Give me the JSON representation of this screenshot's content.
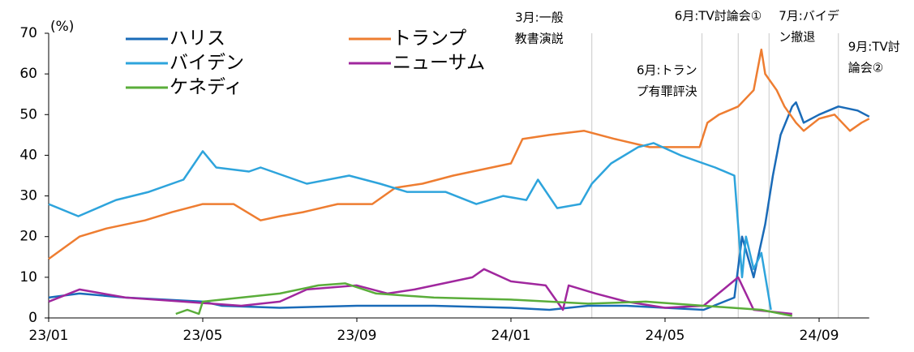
{
  "chart_data": {
    "type": "line",
    "y_unit": "(%)",
    "xlim": [
      0,
      21.3
    ],
    "xticks": [
      {
        "value": 0,
        "label": "23/01"
      },
      {
        "value": 4,
        "label": "23/05"
      },
      {
        "value": 8,
        "label": "23/09"
      },
      {
        "value": 12,
        "label": "24/01"
      },
      {
        "value": 16,
        "label": "24/05"
      },
      {
        "value": 20,
        "label": "24/09"
      }
    ],
    "ylim": [
      0,
      70
    ],
    "yticks": [
      0,
      10,
      20,
      30,
      40,
      50,
      60,
      70
    ],
    "legend": "top-left",
    "series": [
      {
        "name": "ハリス",
        "color": "#1a6bb8",
        "x": [
          0,
          0.8,
          2,
          3,
          4,
          4.5,
          6,
          8,
          10,
          12,
          13,
          14,
          15,
          16,
          17,
          17.8,
          18,
          18.3,
          18.6,
          18.8,
          19,
          19.3,
          19.4,
          19.6,
          20,
          20.5,
          21,
          21.3
        ],
        "values": [
          5,
          6,
          5,
          4.5,
          4,
          3,
          2.5,
          3,
          3,
          2.5,
          2,
          3,
          3,
          2.5,
          2,
          5,
          20,
          10,
          23,
          35,
          45,
          52,
          53,
          48,
          50,
          52,
          51,
          49.5
        ]
      },
      {
        "name": "トランプ",
        "color": "#ee7d31",
        "x": [
          0,
          0.8,
          1.5,
          2.5,
          3.2,
          4,
          4.8,
          5.5,
          6.0,
          6.6,
          7.5,
          8.4,
          9,
          9.7,
          10.5,
          11.5,
          12,
          12.3,
          13,
          13.9,
          14.7,
          15.6,
          16.3,
          16.9,
          17.1,
          17.4,
          17.9,
          18.3,
          18.5,
          18.6,
          18.9,
          19.1,
          19.4,
          19.6,
          20,
          20.4,
          20.8,
          21.1,
          21.3
        ],
        "values": [
          14.5,
          20,
          22,
          24,
          26,
          28,
          28,
          24,
          25,
          26,
          28,
          28,
          32,
          33,
          35,
          37,
          38,
          44,
          45,
          46,
          44,
          42,
          42,
          42,
          48,
          50,
          52,
          56,
          66,
          60,
          56,
          52,
          48,
          46,
          49,
          50,
          46,
          48,
          49
        ]
      },
      {
        "name": "バイデン",
        "color": "#2ea4dc",
        "x": [
          0,
          0.77,
          1.75,
          2.6,
          3.5,
          4,
          4.35,
          5.2,
          5.5,
          6.7,
          7.8,
          8.6,
          9.3,
          10.3,
          11.1,
          11.8,
          12.4,
          12.7,
          13.2,
          13.8,
          14.1,
          14.6,
          15.3,
          15.7,
          16.4,
          17,
          17.3,
          17.8,
          18,
          18.1,
          18.3,
          18.5,
          18.75
        ],
        "values": [
          28,
          25,
          29,
          31,
          34,
          41,
          37,
          36,
          37,
          33,
          35,
          33,
          31,
          31,
          28,
          30,
          29,
          34,
          27,
          28,
          33,
          38,
          42,
          43,
          40,
          38,
          37,
          35,
          10,
          20,
          12,
          16,
          2
        ]
      },
      {
        "name": "ニューサム",
        "color": "#a0279e",
        "x": [
          0,
          0.8,
          2,
          3.5,
          5,
          6,
          6.7,
          8,
          8.8,
          9.5,
          10.5,
          11,
          11.3,
          12,
          12.9,
          13.35,
          13.5,
          14.2,
          15,
          16,
          17,
          17.9,
          18.3,
          19.3
        ],
        "values": [
          4,
          7,
          5,
          4,
          3,
          4,
          7,
          8,
          6,
          7,
          9,
          10,
          12,
          9,
          8,
          2,
          8,
          6,
          4,
          2.5,
          3,
          10,
          2,
          1
        ]
      },
      {
        "name": "ケネディ",
        "color": "#5aad3a",
        "x": [
          3.3,
          3.6,
          3.9,
          4,
          5,
          6,
          7,
          7.7,
          8.5,
          10,
          12,
          14,
          15.5,
          17,
          18.5,
          19.3
        ],
        "values": [
          1,
          2,
          1,
          4,
          5,
          6,
          8,
          8.5,
          6,
          5,
          4.5,
          3.5,
          4,
          3,
          2,
          0.5
        ]
      }
    ],
    "annotations": [
      {
        "x": 14.1,
        "label": [
          "3月:一般",
          "教書演説"
        ]
      },
      {
        "x": 16.96,
        "label": [
          "6月:トラン",
          "プ有罪評決"
        ]
      },
      {
        "x": 17.9,
        "label": [
          "6月:TV討論会①"
        ]
      },
      {
        "x": 18.7,
        "label": [
          "7月:バイデ",
          "ン撤退"
        ]
      },
      {
        "x": 20.5,
        "label": [
          "9月:TV討",
          "論会②"
        ]
      }
    ]
  }
}
